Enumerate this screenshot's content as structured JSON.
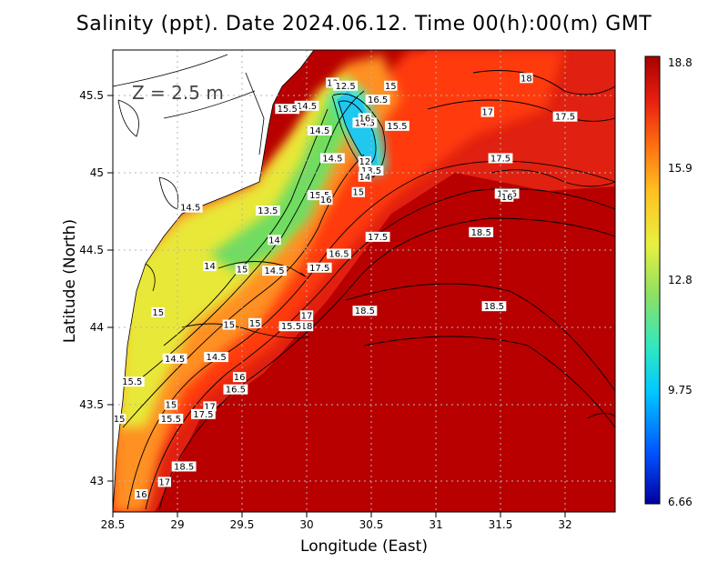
{
  "title": "Salinity (ppt). Date 2024.06.12. Time 00(h):00(m) GMT",
  "depth_label": "Z = 2.5 m",
  "x_axis_label": "Longitude (East)",
  "y_axis_label": "Latitude (North)",
  "x_ticks": [
    "28.5",
    "29",
    "29.5",
    "30",
    "30.5",
    "31",
    "31.5",
    "32"
  ],
  "y_ticks": [
    "43",
    "43.5",
    "44",
    "44.5",
    "45",
    "45.5"
  ],
  "colorbar": {
    "labels": [
      "18.8",
      "15.9",
      "12.8",
      "9.75",
      "6.66"
    ],
    "min": 6.66,
    "max": 18.8,
    "colors": [
      "#0000a0",
      "#0050ff",
      "#00c8ff",
      "#30e8c0",
      "#90e060",
      "#e8f040",
      "#ffc020",
      "#ff7010",
      "#e82010",
      "#a80000"
    ]
  },
  "contour_labels": [
    {
      "text": "18",
      "lon": 31.7,
      "lat": 45.6
    },
    {
      "text": "17",
      "lon": 31.4,
      "lat": 45.38
    },
    {
      "text": "17.5",
      "lon": 32.0,
      "lat": 45.35
    },
    {
      "text": "17.5",
      "lon": 31.5,
      "lat": 45.08
    },
    {
      "text": "17.5",
      "lon": 31.55,
      "lat": 44.85
    },
    {
      "text": "16",
      "lon": 31.55,
      "lat": 44.83
    },
    {
      "text": "18.5",
      "lon": 31.35,
      "lat": 44.6
    },
    {
      "text": "18.5",
      "lon": 31.45,
      "lat": 44.12
    },
    {
      "text": "18.5",
      "lon": 30.45,
      "lat": 44.09
    },
    {
      "text": "17.5",
      "lon": 30.55,
      "lat": 44.57
    },
    {
      "text": "16.5",
      "lon": 30.25,
      "lat": 44.46
    },
    {
      "text": "17.5",
      "lon": 30.1,
      "lat": 44.37
    },
    {
      "text": "17",
      "lon": 30.0,
      "lat": 44.06
    },
    {
      "text": "18",
      "lon": 30.0,
      "lat": 43.99
    },
    {
      "text": "15.5",
      "lon": 29.88,
      "lat": 43.99
    },
    {
      "text": "15",
      "lon": 29.6,
      "lat": 44.01
    },
    {
      "text": "15",
      "lon": 29.4,
      "lat": 44.0
    },
    {
      "text": "15",
      "lon": 28.85,
      "lat": 44.08
    },
    {
      "text": "14",
      "lon": 29.25,
      "lat": 44.38
    },
    {
      "text": "15",
      "lon": 29.5,
      "lat": 44.36
    },
    {
      "text": "14.5",
      "lon": 29.75,
      "lat": 44.35
    },
    {
      "text": "14",
      "lon": 29.75,
      "lat": 44.55
    },
    {
      "text": "13.5",
      "lon": 29.7,
      "lat": 44.74
    },
    {
      "text": "14.5",
      "lon": 29.1,
      "lat": 44.76
    },
    {
      "text": "15.5",
      "lon": 30.1,
      "lat": 44.84
    },
    {
      "text": "16",
      "lon": 30.15,
      "lat": 44.81
    },
    {
      "text": "15",
      "lon": 30.4,
      "lat": 44.86
    },
    {
      "text": "14.5",
      "lon": 30.2,
      "lat": 45.08
    },
    {
      "text": "14.5",
      "lon": 30.1,
      "lat": 45.26
    },
    {
      "text": "12",
      "lon": 30.45,
      "lat": 45.06
    },
    {
      "text": "13.5",
      "lon": 30.5,
      "lat": 45.0
    },
    {
      "text": "14",
      "lon": 30.45,
      "lat": 44.96
    },
    {
      "text": "14.5",
      "lon": 30.45,
      "lat": 45.31
    },
    {
      "text": "16",
      "lon": 30.45,
      "lat": 45.34
    },
    {
      "text": "15.5",
      "lon": 30.7,
      "lat": 45.29
    },
    {
      "text": "16.5",
      "lon": 30.55,
      "lat": 45.46
    },
    {
      "text": "15",
      "lon": 30.65,
      "lat": 45.55
    },
    {
      "text": "13",
      "lon": 30.2,
      "lat": 45.57
    },
    {
      "text": "12.5",
      "lon": 30.3,
      "lat": 45.55
    },
    {
      "text": "14.5",
      "lon": 30.0,
      "lat": 45.42
    },
    {
      "text": "15.5",
      "lon": 29.85,
      "lat": 45.4
    },
    {
      "text": "14.5",
      "lon": 28.98,
      "lat": 43.78
    },
    {
      "text": "14.5",
      "lon": 29.3,
      "lat": 43.79
    },
    {
      "text": "15.5",
      "lon": 28.65,
      "lat": 43.63
    },
    {
      "text": "16",
      "lon": 29.48,
      "lat": 43.66
    },
    {
      "text": "16.5",
      "lon": 29.45,
      "lat": 43.58
    },
    {
      "text": "15",
      "lon": 28.95,
      "lat": 43.48
    },
    {
      "text": "15.5",
      "lon": 28.95,
      "lat": 43.39
    },
    {
      "text": "17",
      "lon": 29.25,
      "lat": 43.47
    },
    {
      "text": "17.5",
      "lon": 29.2,
      "lat": 43.42
    },
    {
      "text": "15",
      "lon": 28.55,
      "lat": 43.39
    },
    {
      "text": "18.5",
      "lon": 29.05,
      "lat": 43.08
    },
    {
      "text": "17",
      "lon": 28.9,
      "lat": 42.98
    },
    {
      "text": "16",
      "lon": 28.72,
      "lat": 42.9
    }
  ],
  "colors": {
    "open_sea": "#b80000",
    "land": "#ffffff",
    "coastline": "#000000",
    "contour": "#000000",
    "grid": "#b4b4b4"
  }
}
